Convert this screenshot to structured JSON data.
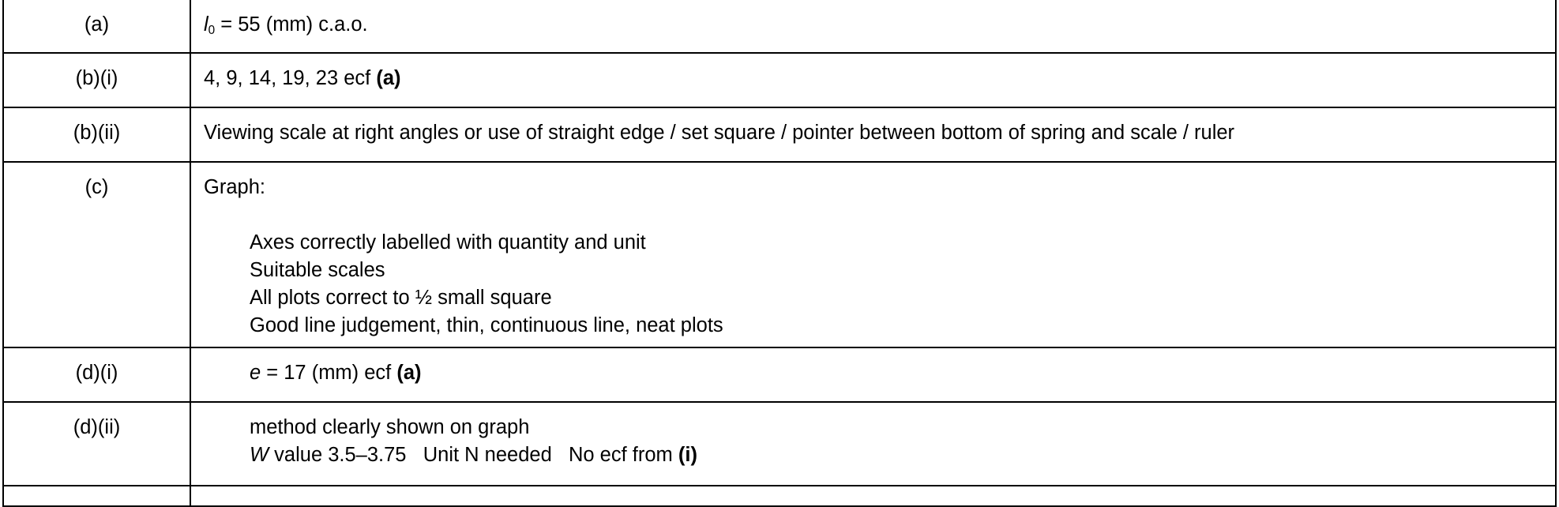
{
  "rows": [
    {
      "question": "(a)",
      "l_symbol": "l",
      "l_subscript": "0",
      "text": " = 55 (mm) c.a.o."
    },
    {
      "question": "(b)(i)",
      "text": "4, 9, 14, 19, 23 ecf ",
      "bold_ref": "(a)"
    },
    {
      "question": "(b)(ii)",
      "text": "Viewing scale at right angles or use of straight edge / set square / pointer between bottom of spring and scale / ruler"
    },
    {
      "question": "(c)",
      "heading": "Graph:",
      "points": [
        "Axes correctly labelled with quantity and unit",
        "Suitable scales",
        "All plots correct to ½ small square",
        "Good line judgement, thin, continuous line, neat plots"
      ]
    },
    {
      "question": "(d)(i)",
      "e_symbol": "e",
      "text": " = 17 (mm) ecf ",
      "bold_ref": "(a)"
    },
    {
      "question": "(d)(ii)",
      "line1": "method clearly shown on graph",
      "w_symbol": "W",
      "line2": " value 3.5–3.75   Unit N needed   No ecf from ",
      "bold_ref": "(i)"
    }
  ]
}
